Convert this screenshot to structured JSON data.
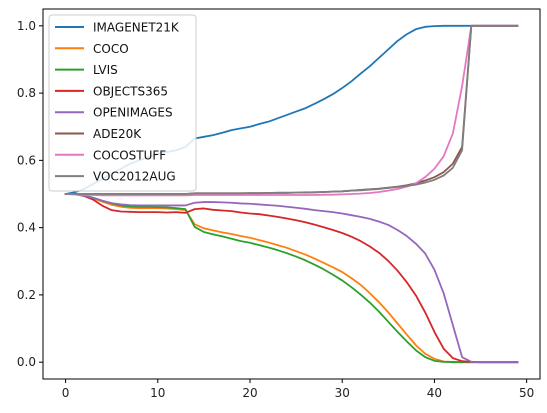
{
  "chart_data": {
    "type": "line",
    "title": "",
    "xlabel": "",
    "ylabel": "",
    "xlim": [
      -2.45,
      51.45
    ],
    "ylim": [
      -0.05,
      1.05
    ],
    "xticks": [
      0,
      10,
      20,
      30,
      40,
      50
    ],
    "yticks": [
      0.0,
      0.2,
      0.4,
      0.6,
      0.8,
      1.0
    ],
    "xtick_labels": [
      "0",
      "10",
      "20",
      "30",
      "40",
      "50"
    ],
    "ytick_labels": [
      "0.0",
      "0.2",
      "0.4",
      "0.6",
      "0.8",
      "1.0"
    ],
    "grid": false,
    "legend_position": "upper-left",
    "x": [
      0,
      1,
      2,
      3,
      4,
      5,
      6,
      7,
      8,
      9,
      10,
      11,
      12,
      13,
      14,
      15,
      16,
      17,
      18,
      19,
      20,
      21,
      22,
      23,
      24,
      25,
      26,
      27,
      28,
      29,
      30,
      31,
      32,
      33,
      34,
      35,
      36,
      37,
      38,
      39,
      40,
      41,
      42,
      43,
      44,
      45,
      46,
      47,
      48,
      49
    ],
    "series": [
      {
        "name": "IMAGENET21K",
        "color": "#1f77b4",
        "values": [
          0.5,
          0.505,
          0.515,
          0.53,
          0.545,
          0.56,
          0.575,
          0.59,
          0.6,
          0.61,
          0.62,
          0.625,
          0.63,
          0.64,
          0.665,
          0.67,
          0.675,
          0.682,
          0.69,
          0.695,
          0.7,
          0.708,
          0.715,
          0.725,
          0.735,
          0.745,
          0.755,
          0.768,
          0.782,
          0.797,
          0.815,
          0.835,
          0.858,
          0.88,
          0.905,
          0.93,
          0.955,
          0.975,
          0.99,
          0.997,
          0.999,
          1.0,
          1.0,
          1.0,
          1.0,
          1.0,
          1.0,
          1.0,
          1.0,
          1.0
        ]
      },
      {
        "name": "COCO",
        "color": "#ff7f0e",
        "values": [
          0.5,
          0.5,
          0.495,
          0.487,
          0.477,
          0.468,
          0.462,
          0.459,
          0.458,
          0.458,
          0.458,
          0.457,
          0.455,
          0.452,
          0.41,
          0.398,
          0.392,
          0.386,
          0.381,
          0.375,
          0.37,
          0.363,
          0.356,
          0.348,
          0.34,
          0.33,
          0.32,
          0.308,
          0.295,
          0.282,
          0.268,
          0.25,
          0.23,
          0.205,
          0.178,
          0.148,
          0.115,
          0.082,
          0.05,
          0.025,
          0.01,
          0.002,
          0.001,
          0.0,
          0.0,
          0.0,
          0.0,
          0.0,
          0.0,
          0.0
        ]
      },
      {
        "name": "LVIS",
        "color": "#2ca02c",
        "values": [
          0.5,
          0.5,
          0.496,
          0.489,
          0.48,
          0.472,
          0.466,
          0.463,
          0.462,
          0.462,
          0.461,
          0.46,
          0.458,
          0.455,
          0.402,
          0.387,
          0.38,
          0.374,
          0.367,
          0.36,
          0.355,
          0.348,
          0.341,
          0.333,
          0.324,
          0.314,
          0.303,
          0.29,
          0.276,
          0.26,
          0.243,
          0.223,
          0.201,
          0.177,
          0.15,
          0.12,
          0.09,
          0.062,
          0.035,
          0.015,
          0.004,
          0.001,
          0.0,
          0.0,
          0.0,
          0.0,
          0.0,
          0.0,
          0.0,
          0.0
        ]
      },
      {
        "name": "OBJECTS365",
        "color": "#d62728",
        "values": [
          0.5,
          0.5,
          0.494,
          0.483,
          0.465,
          0.452,
          0.448,
          0.447,
          0.446,
          0.446,
          0.446,
          0.445,
          0.446,
          0.444,
          0.455,
          0.457,
          0.453,
          0.451,
          0.449,
          0.445,
          0.442,
          0.44,
          0.436,
          0.432,
          0.427,
          0.422,
          0.416,
          0.409,
          0.401,
          0.393,
          0.384,
          0.373,
          0.36,
          0.344,
          0.325,
          0.301,
          0.272,
          0.238,
          0.198,
          0.148,
          0.09,
          0.04,
          0.012,
          0.003,
          0.001,
          0.0,
          0.0,
          0.0,
          0.0,
          0.0
        ]
      },
      {
        "name": "OPENIMAGES",
        "color": "#9467bd",
        "values": [
          0.5,
          0.499,
          0.495,
          0.488,
          0.48,
          0.473,
          0.469,
          0.467,
          0.466,
          0.466,
          0.466,
          0.466,
          0.466,
          0.466,
          0.474,
          0.476,
          0.476,
          0.475,
          0.474,
          0.472,
          0.471,
          0.469,
          0.467,
          0.465,
          0.462,
          0.459,
          0.456,
          0.452,
          0.449,
          0.446,
          0.442,
          0.437,
          0.432,
          0.426,
          0.418,
          0.408,
          0.393,
          0.375,
          0.352,
          0.323,
          0.275,
          0.205,
          0.11,
          0.015,
          0.001,
          0.0,
          0.0,
          0.0,
          0.0,
          0.0
        ]
      },
      {
        "name": "ADE20K",
        "color": "#8c564b",
        "values": [
          0.5,
          0.5,
          0.5,
          0.5,
          0.5,
          0.5,
          0.5,
          0.5,
          0.5,
          0.5,
          0.5,
          0.5,
          0.5,
          0.5,
          0.502,
          0.502,
          0.502,
          0.502,
          0.502,
          0.502,
          0.502,
          0.502,
          0.503,
          0.503,
          0.503,
          0.504,
          0.504,
          0.505,
          0.506,
          0.507,
          0.508,
          0.51,
          0.512,
          0.514,
          0.516,
          0.519,
          0.522,
          0.526,
          0.532,
          0.54,
          0.55,
          0.565,
          0.59,
          0.64,
          1.0,
          1.0,
          1.0,
          1.0,
          1.0,
          1.0
        ]
      },
      {
        "name": "COCOSTUFF",
        "color": "#e377c2",
        "values": [
          0.5,
          0.499,
          0.498,
          0.497,
          0.496,
          0.496,
          0.496,
          0.496,
          0.496,
          0.496,
          0.496,
          0.496,
          0.496,
          0.496,
          0.497,
          0.497,
          0.497,
          0.497,
          0.497,
          0.497,
          0.497,
          0.497,
          0.497,
          0.497,
          0.497,
          0.497,
          0.497,
          0.497,
          0.498,
          0.498,
          0.499,
          0.5,
          0.501,
          0.503,
          0.506,
          0.51,
          0.515,
          0.522,
          0.532,
          0.55,
          0.575,
          0.612,
          0.68,
          0.82,
          1.0,
          1.0,
          1.0,
          1.0,
          1.0,
          1.0
        ]
      },
      {
        "name": "VOC2012AUG",
        "color": "#7f7f7f",
        "values": [
          0.5,
          0.5,
          0.5,
          0.5,
          0.5,
          0.5,
          0.5,
          0.5,
          0.5,
          0.5,
          0.5,
          0.5,
          0.5,
          0.5,
          0.502,
          0.502,
          0.502,
          0.502,
          0.502,
          0.502,
          0.503,
          0.503,
          0.503,
          0.504,
          0.504,
          0.504,
          0.505,
          0.505,
          0.506,
          0.507,
          0.508,
          0.51,
          0.511,
          0.513,
          0.515,
          0.518,
          0.521,
          0.524,
          0.528,
          0.534,
          0.542,
          0.555,
          0.578,
          0.63,
          1.0,
          1.0,
          1.0,
          1.0,
          1.0,
          1.0
        ]
      }
    ]
  }
}
